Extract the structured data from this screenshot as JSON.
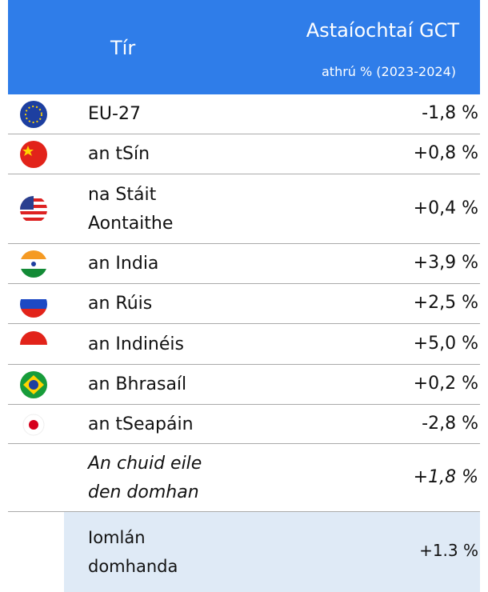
{
  "header": {
    "country": "Tír",
    "metric": "Astaíochtaí GCT",
    "subtitle": "athrú % (2023-2024)"
  },
  "table": {
    "rows": [
      {
        "name": [
          "EU-27"
        ],
        "value": "-1,8 %"
      },
      {
        "name": [
          "an tSín"
        ],
        "value": "+0,8 %"
      },
      {
        "name": [
          "na Stáit",
          "Aontaithe"
        ],
        "value": "+0,4 %"
      },
      {
        "name": [
          "an India"
        ],
        "value": "+3,9 %"
      },
      {
        "name": [
          "an Rúis"
        ],
        "value": "+2,5 %"
      },
      {
        "name": [
          "an Indinéis"
        ],
        "value": "+5,0 %"
      },
      {
        "name": [
          "an Bhrasaíl"
        ],
        "value": "+0,2 %"
      },
      {
        "name": [
          "an tSeapáin"
        ],
        "value": "-2,8 %"
      },
      {
        "name": [
          "An chuid eile",
          "den domhan"
        ],
        "value": "+1,8 %"
      }
    ],
    "total": {
      "name": [
        "Iomlán",
        "domhanda"
      ],
      "value": "+1.3 %"
    }
  }
}
